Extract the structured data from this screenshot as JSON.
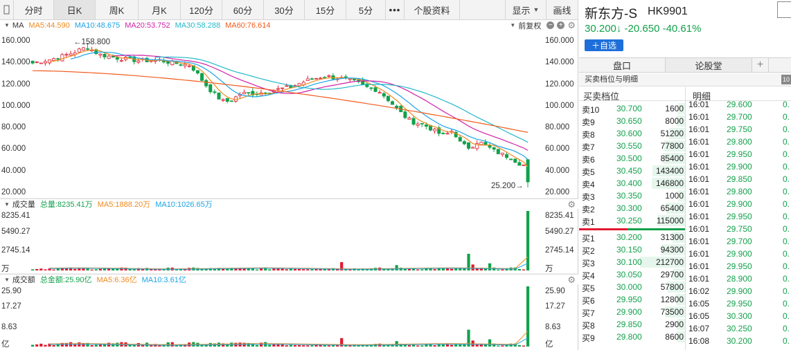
{
  "toolbar": {
    "tabs": [
      "分时",
      "日K",
      "周K",
      "月K",
      "120分",
      "60分",
      "30分",
      "15分",
      "5分"
    ],
    "active_tab": "日K",
    "more": "•••",
    "stock_info": "个股资料",
    "display": "显示",
    "draw": "画线"
  },
  "ma_legend": {
    "label": "MA",
    "items": [
      {
        "text": "MA5:44.590",
        "color": "#f08a1c"
      },
      {
        "text": "MA10:48.675",
        "color": "#1aa3e6"
      },
      {
        "text": "MA20:53.752",
        "color": "#d11fa6"
      },
      {
        "text": "MA30:58.288",
        "color": "#22b9c9"
      },
      {
        "text": "MA60:76.614",
        "color": "#f25a1b"
      }
    ],
    "adjust": "前复权",
    "minus": "−",
    "plus": "+"
  },
  "volume_legend": {
    "label": "成交量",
    "total": {
      "text": "总量:8235.41万",
      "color": "#12a14b"
    },
    "ma5": {
      "text": "MA5:1888.20万",
      "color": "#f08a1c"
    },
    "ma10": {
      "text": "MA10:1026.65万",
      "color": "#1aa3e6"
    }
  },
  "amount_legend": {
    "label": "成交额",
    "total": {
      "text": "总金额:25.90亿",
      "color": "#12a14b"
    },
    "ma5": {
      "text": "MA5:6.36亿",
      "color": "#f08a1c"
    },
    "ma10": {
      "text": "MA10:3.61亿",
      "color": "#1aa3e6"
    }
  },
  "price_axis": [
    "160.000",
    "140.000",
    "120.000",
    "100.000",
    "80.000",
    "60.000",
    "40.000",
    "20.000"
  ],
  "volume_axis": [
    "8235.41",
    "5490.27",
    "2745.14",
    "万"
  ],
  "amount_axis": [
    "25.90",
    "17.27",
    "8.63",
    "亿"
  ],
  "annotations": {
    "high": "←158.800",
    "low": "25.200→"
  },
  "chart_data": {
    "type": "candlestick",
    "price_ylim": [
      20,
      160
    ],
    "volume_ylim": [
      0,
      8235.41
    ],
    "amount_ylim": [
      0,
      25.9
    ],
    "ma_colors": {
      "ma5": "#f08a1c",
      "ma10": "#1aa3e6",
      "ma20": "#d11fa6",
      "ma30": "#22b9c9",
      "ma60": "#f25a1b"
    },
    "up_color": "#e11a2e",
    "down_color": "#12a14b",
    "key_points": {
      "high": 158.8,
      "low": 25.2,
      "last_close": 30.2,
      "last_volume_wan": 8235.41,
      "last_amount_yi": 25.9
    }
  },
  "stock": {
    "name": "新东方-S",
    "code": "HK9901",
    "quote": "30.200↓ -20.650 -40.61%",
    "watch_button": "＋自选"
  },
  "right_tabs": {
    "order_book": "盘口",
    "forum": "论股堂",
    "add": "+"
  },
  "section": {
    "title": "买卖档位与明细",
    "badge": "10"
  },
  "ob_header": {
    "levels": "买卖档位",
    "detail": "明细"
  },
  "asks": [
    {
      "label": "卖10",
      "price": "30.700",
      "vol": "1600"
    },
    {
      "label": "卖9",
      "price": "30.650",
      "vol": "8000"
    },
    {
      "label": "卖8",
      "price": "30.600",
      "vol": "51200"
    },
    {
      "label": "卖7",
      "price": "30.550",
      "vol": "77800"
    },
    {
      "label": "卖6",
      "price": "30.500",
      "vol": "85400"
    },
    {
      "label": "卖5",
      "price": "30.450",
      "vol": "143400"
    },
    {
      "label": "卖4",
      "price": "30.400",
      "vol": "146800"
    },
    {
      "label": "卖3",
      "price": "30.350",
      "vol": "1000"
    },
    {
      "label": "卖2",
      "price": "30.300",
      "vol": "65400"
    },
    {
      "label": "卖1",
      "price": "30.250",
      "vol": "115000"
    }
  ],
  "bids": [
    {
      "label": "买1",
      "price": "30.200",
      "vol": "31300"
    },
    {
      "label": "买2",
      "price": "30.150",
      "vol": "94300"
    },
    {
      "label": "买3",
      "price": "30.100",
      "vol": "212700"
    },
    {
      "label": "买4",
      "price": "30.050",
      "vol": "29700"
    },
    {
      "label": "买5",
      "price": "30.000",
      "vol": "57800"
    },
    {
      "label": "买6",
      "price": "29.950",
      "vol": "12800"
    },
    {
      "label": "买7",
      "price": "29.900",
      "vol": "73500"
    },
    {
      "label": "买8",
      "price": "29.850",
      "vol": "2900"
    },
    {
      "label": "买9",
      "price": "29.800",
      "vol": "8600"
    }
  ],
  "trades": [
    {
      "time": "16:01",
      "price": "29.600",
      "vol": "0."
    },
    {
      "time": "16:01",
      "price": "29.700",
      "vol": "0."
    },
    {
      "time": "16:01",
      "price": "29.750",
      "vol": "0."
    },
    {
      "time": "16:01",
      "price": "29.800",
      "vol": "0."
    },
    {
      "time": "16:01",
      "price": "29.950",
      "vol": "0."
    },
    {
      "time": "16:01",
      "price": "29.900",
      "vol": "0."
    },
    {
      "time": "16:01",
      "price": "29.850",
      "vol": "0."
    },
    {
      "time": "16:01",
      "price": "29.800",
      "vol": "0."
    },
    {
      "time": "16:01",
      "price": "29.900",
      "vol": "0."
    },
    {
      "time": "16:01",
      "price": "29.950",
      "vol": "0."
    },
    {
      "time": "16:01",
      "price": "29.750",
      "vol": "0."
    },
    {
      "time": "16:01",
      "price": "29.700",
      "vol": "0."
    },
    {
      "time": "16:01",
      "price": "29.900",
      "vol": "0."
    },
    {
      "time": "16:01",
      "price": "29.950",
      "vol": "0."
    },
    {
      "time": "16:01",
      "price": "28.900",
      "vol": "0."
    },
    {
      "time": "16:02",
      "price": "29.900",
      "vol": "0."
    },
    {
      "time": "16:05",
      "price": "29.950",
      "vol": "0."
    },
    {
      "time": "16:05",
      "price": "30.300",
      "vol": "0."
    },
    {
      "time": "16:07",
      "price": "30.250",
      "vol": "0."
    },
    {
      "time": "16:08",
      "price": "30.200",
      "vol": "0."
    }
  ]
}
